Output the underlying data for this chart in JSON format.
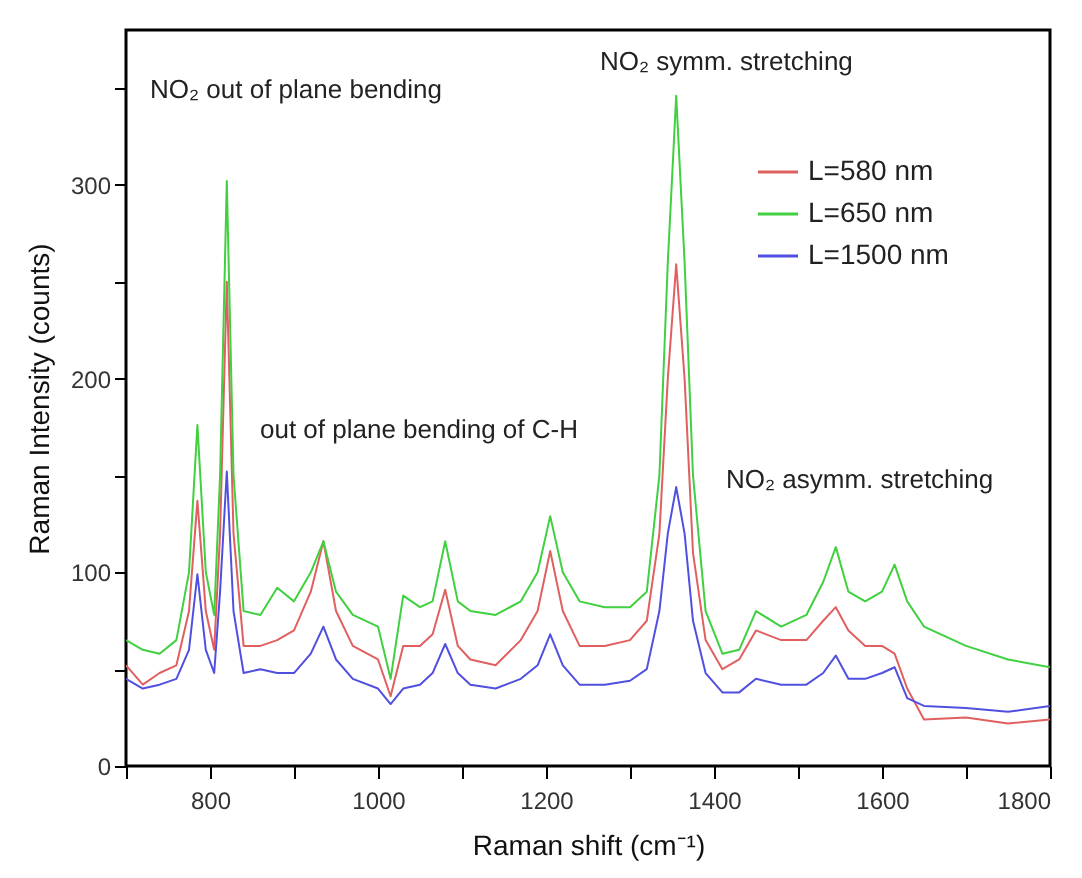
{
  "chart_data": {
    "type": "line",
    "xlabel": "Raman shift (cm⁻¹)",
    "ylabel": "Raman Intensity (counts)",
    "x": [
      700,
      720,
      740,
      760,
      775,
      785,
      795,
      805,
      812,
      820,
      828,
      840,
      860,
      880,
      900,
      920,
      935,
      950,
      970,
      1000,
      1015,
      1030,
      1050,
      1065,
      1080,
      1095,
      1110,
      1140,
      1170,
      1190,
      1205,
      1220,
      1240,
      1270,
      1300,
      1320,
      1335,
      1345,
      1355,
      1365,
      1375,
      1390,
      1410,
      1430,
      1450,
      1480,
      1510,
      1530,
      1545,
      1560,
      1580,
      1600,
      1615,
      1630,
      1650,
      1700,
      1750,
      1800
    ],
    "series": [
      {
        "name": "L=580 nm",
        "color": "#e06060",
        "values": [
          52,
          42,
          48,
          52,
          80,
          137,
          80,
          60,
          120,
          250,
          120,
          62,
          62,
          65,
          70,
          90,
          116,
          80,
          62,
          55,
          36,
          62,
          62,
          68,
          91,
          62,
          55,
          52,
          65,
          80,
          111,
          80,
          62,
          62,
          65,
          75,
          120,
          200,
          259,
          200,
          110,
          65,
          50,
          55,
          70,
          65,
          65,
          75,
          82,
          70,
          62,
          62,
          58,
          40,
          24,
          25,
          22,
          24
        ]
      },
      {
        "name": "L=650 nm",
        "color": "#40d040",
        "values": [
          65,
          60,
          58,
          65,
          100,
          176,
          100,
          78,
          150,
          302,
          150,
          80,
          78,
          92,
          85,
          100,
          116,
          90,
          78,
          72,
          45,
          88,
          82,
          85,
          116,
          85,
          80,
          78,
          85,
          100,
          129,
          100,
          85,
          82,
          82,
          90,
          150,
          260,
          346,
          260,
          150,
          80,
          58,
          60,
          80,
          72,
          78,
          95,
          113,
          90,
          85,
          90,
          104,
          85,
          72,
          62,
          55,
          51
        ]
      },
      {
        "name": "L=1500 nm",
        "color": "#5050e0",
        "values": [
          45,
          40,
          42,
          45,
          60,
          99,
          60,
          48,
          90,
          152,
          80,
          48,
          50,
          48,
          48,
          58,
          72,
          55,
          45,
          40,
          32,
          40,
          42,
          48,
          63,
          48,
          42,
          40,
          45,
          52,
          68,
          52,
          42,
          42,
          44,
          50,
          80,
          120,
          144,
          120,
          75,
          48,
          38,
          38,
          45,
          42,
          42,
          48,
          57,
          45,
          45,
          48,
          51,
          35,
          31,
          30,
          28,
          31
        ]
      }
    ],
    "xlim": [
      700,
      1800
    ],
    "xticks": [
      {
        "value": 700,
        "label": null
      },
      800,
      {
        "value": 900,
        "label": null
      },
      1000,
      {
        "value": 1100,
        "label": null
      },
      1200,
      {
        "value": 1300,
        "label": null
      },
      1400,
      {
        "value": 1500,
        "label": null
      },
      1600,
      {
        "value": 1700,
        "label": null
      },
      1800
    ],
    "ylim": [
      0,
      380
    ],
    "yticks": [
      0,
      {
        "value": 50,
        "label": null
      },
      100,
      {
        "value": 150,
        "label": null
      },
      200,
      {
        "value": 250,
        "label": null
      },
      300,
      {
        "value": 350,
        "label": null
      }
    ],
    "annotations": [
      "NO₂ out of plane bending",
      "NO₂ symm. stretching",
      "out of plane bending of C-H",
      "NO₂ asymm. stretching"
    ],
    "legend": "top right",
    "grid": false,
    "line_style": "solid"
  }
}
